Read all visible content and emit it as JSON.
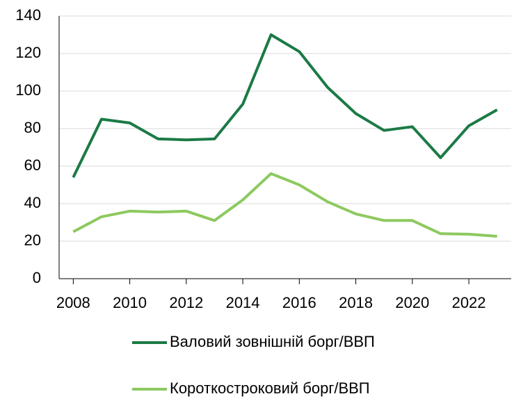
{
  "chart_data": {
    "type": "line",
    "x": [
      2008,
      2009,
      2010,
      2011,
      2012,
      2013,
      2014,
      2015,
      2016,
      2017,
      2018,
      2019,
      2020,
      2021,
      2022,
      2023
    ],
    "series": [
      {
        "name": "Валовий зовнішній борг/ВВП",
        "color": "#1b7a45",
        "values": [
          54,
          85,
          83,
          74.5,
          74,
          74.5,
          93,
          130,
          121,
          102,
          88,
          79,
          81,
          64.5,
          81.5,
          90
        ]
      },
      {
        "name": "Короткостроковий борг/ВВП",
        "color": "#8dc95f",
        "values": [
          25,
          33,
          36,
          35.5,
          36,
          31,
          42,
          56,
          50,
          41,
          34.5,
          31,
          31,
          24,
          23.7,
          22.6
        ]
      }
    ],
    "xlim": [
      2007.5,
      2023.5
    ],
    "xticks": [
      2008,
      2010,
      2012,
      2014,
      2016,
      2018,
      2020,
      2022
    ],
    "ylim": [
      0,
      140
    ],
    "yticks": [
      0,
      20,
      40,
      60,
      80,
      100,
      120,
      140
    ],
    "grid": true
  }
}
